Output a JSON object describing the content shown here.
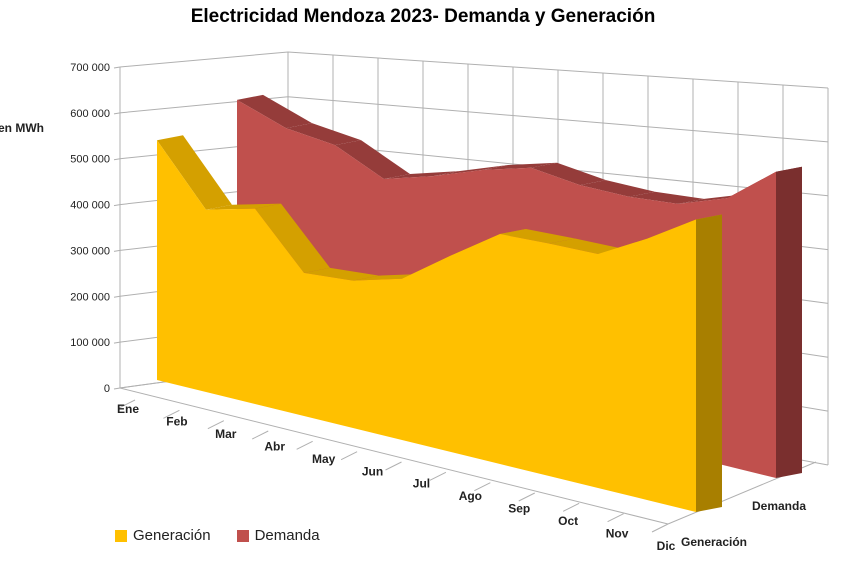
{
  "chart_data": {
    "type": "area",
    "subtype": "3d-area",
    "title": "Electricidad Mendoza 2023- Demanda y Generación",
    "ylabel": "en MWh",
    "xlabel": "",
    "ylim": [
      0,
      700000
    ],
    "yticks": [
      "0",
      "100 000",
      "200 000",
      "300 000",
      "400 000",
      "500 000",
      "600 000",
      "700 000"
    ],
    "categories": [
      "Ene",
      "Feb",
      "Mar",
      "Abr",
      "May",
      "Jun",
      "Jul",
      "Ago",
      "Sep",
      "Oct",
      "Nov",
      "Dic"
    ],
    "series": [
      {
        "name": "Generación",
        "color": "#FFC000",
        "values": [
          510000,
          372000,
          383000,
          270000,
          268000,
          283000,
          333000,
          377000,
          369000,
          360000,
          390000,
          424000
        ]
      },
      {
        "name": "Demanda",
        "color": "#C0504D",
        "values": [
          547000,
          489000,
          459000,
          398000,
          411000,
          429000,
          439000,
          415000,
          402000,
          397000,
          412000,
          457000
        ]
      }
    ],
    "depth_labels": [
      "Generación",
      "Demanda"
    ],
    "legend_position": "bottom-left",
    "grid": true
  }
}
